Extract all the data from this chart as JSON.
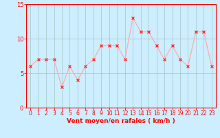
{
  "background_color": "#cceeff",
  "grid_color": "#aacccc",
  "line_color": "#ffaaaa",
  "marker_color": "#ff2222",
  "x": [
    0,
    1,
    2,
    3,
    4,
    5,
    6,
    7,
    8,
    9,
    10,
    11,
    12,
    13,
    14,
    15,
    16,
    17,
    18,
    19,
    20,
    21,
    22,
    23
  ],
  "y": [
    6,
    7,
    7,
    7,
    3,
    6,
    4,
    6,
    7,
    9,
    9,
    9,
    7,
    13,
    11,
    11,
    9,
    7,
    9,
    7,
    6,
    11,
    11,
    6
  ],
  "ylim": [
    0,
    15
  ],
  "xlim": [
    -0.5,
    23.5
  ],
  "yticks": [
    0,
    5,
    10,
    15
  ],
  "xticks": [
    0,
    1,
    2,
    3,
    4,
    5,
    6,
    7,
    8,
    9,
    10,
    11,
    12,
    13,
    14,
    15,
    16,
    17,
    18,
    19,
    20,
    21,
    22,
    23
  ],
  "tick_color": "#ff0000",
  "xlabel": "Vent moyen/en rafales ( km/h )",
  "xlabel_fontsize": 6.5,
  "tick_fontsize": 5.5,
  "ytick_fontsize": 6
}
